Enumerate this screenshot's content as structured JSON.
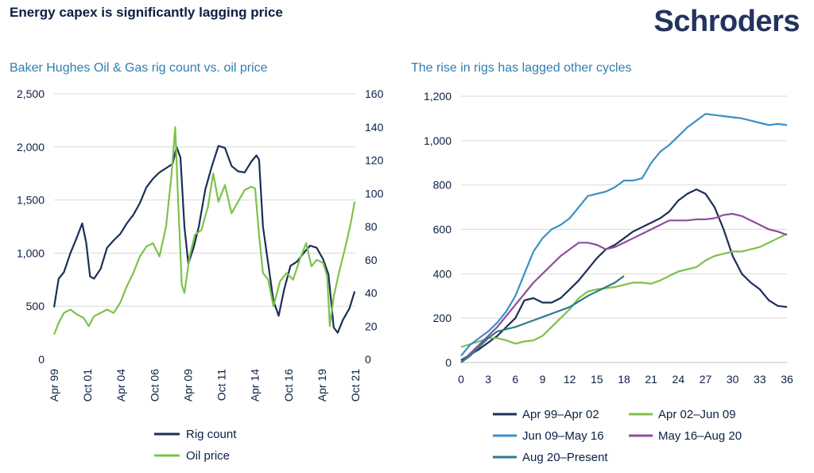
{
  "header": {
    "title": "Energy capex is significantly lagging price",
    "logo": "Schroders"
  },
  "colors": {
    "rig": "#1b2f57",
    "oil": "#7dc24b",
    "s1": "#1b2f57",
    "s2": "#7dc24b",
    "s3": "#3d8fc6",
    "s4": "#8e4f9a",
    "s5": "#2c7a8c",
    "grid": "#d9d9d9"
  },
  "chart_data": [
    {
      "type": "line",
      "title": "Baker Hughes Oil & Gas rig count vs. oil price",
      "x_ticks": [
        "Apr 99",
        "Oct 01",
        "Apr 04",
        "Oct 06",
        "Apr 09",
        "Oct 11",
        "Apr 14",
        "Oct 16",
        "Apr 19",
        "Oct 21"
      ],
      "y_left_ticks": [
        "0",
        "500",
        "1,000",
        "1,500",
        "2,000",
        "2,500"
      ],
      "y_left_lim": [
        0,
        2500
      ],
      "y_right_ticks": [
        "0",
        "20",
        "40",
        "60",
        "80",
        "100",
        "120",
        "140",
        "160"
      ],
      "y_right_lim": [
        0,
        160
      ],
      "x_lim": [
        1999.25,
        2022.25
      ],
      "legend": [
        "Rig count",
        "Oil price"
      ],
      "series": [
        {
          "name": "Rig count",
          "axis": "left",
          "x": [
            1999.25,
            1999.6,
            2000.0,
            2000.5,
            2001.0,
            2001.4,
            2001.7,
            2002.0,
            2002.3,
            2002.8,
            2003.3,
            2003.8,
            2004.3,
            2004.8,
            2005.3,
            2005.8,
            2006.3,
            2006.8,
            2007.3,
            2007.8,
            2008.3,
            2008.6,
            2008.9,
            2009.2,
            2009.5,
            2009.9,
            2010.3,
            2010.8,
            2011.3,
            2011.8,
            2012.3,
            2012.8,
            2013.3,
            2013.8,
            2014.3,
            2014.7,
            2014.9,
            2015.2,
            2015.6,
            2016.0,
            2016.4,
            2016.8,
            2017.3,
            2017.8,
            2018.3,
            2018.8,
            2019.3,
            2019.8,
            2020.2,
            2020.6,
            2020.9,
            2021.3,
            2021.8,
            2022.2
          ],
          "y": [
            490,
            760,
            820,
            1000,
            1150,
            1280,
            1100,
            780,
            760,
            850,
            1050,
            1120,
            1180,
            1280,
            1360,
            1470,
            1620,
            1700,
            1760,
            1800,
            1840,
            2000,
            1900,
            1250,
            900,
            1050,
            1250,
            1600,
            1820,
            2010,
            1990,
            1820,
            1770,
            1760,
            1860,
            1920,
            1880,
            1250,
            900,
            550,
            410,
            650,
            880,
            920,
            1000,
            1070,
            1050,
            940,
            800,
            300,
            250,
            370,
            480,
            640
          ]
        },
        {
          "name": "Oil price",
          "axis": "right",
          "x": [
            1999.25,
            1999.6,
            2000.0,
            2000.5,
            2001.0,
            2001.5,
            2001.9,
            2002.3,
            2002.8,
            2003.3,
            2003.8,
            2004.3,
            2004.8,
            2005.3,
            2005.8,
            2006.3,
            2006.8,
            2007.3,
            2007.8,
            2008.2,
            2008.5,
            2008.7,
            2009.0,
            2009.2,
            2009.6,
            2010.0,
            2010.5,
            2011.0,
            2011.4,
            2011.8,
            2012.3,
            2012.8,
            2013.3,
            2013.8,
            2014.3,
            2014.6,
            2014.9,
            2015.2,
            2015.6,
            2016.0,
            2016.5,
            2017.0,
            2017.5,
            2018.0,
            2018.5,
            2018.9,
            2019.3,
            2019.8,
            2020.1,
            2020.3,
            2020.6,
            2021.0,
            2021.5,
            2021.9,
            2022.2
          ],
          "y": [
            15,
            22,
            28,
            30,
            27,
            25,
            20,
            26,
            28,
            30,
            28,
            34,
            44,
            52,
            62,
            68,
            70,
            62,
            80,
            110,
            140,
            100,
            45,
            40,
            62,
            75,
            78,
            92,
            112,
            95,
            105,
            88,
            95,
            102,
            104,
            103,
            75,
            52,
            48,
            32,
            47,
            52,
            48,
            60,
            70,
            56,
            60,
            58,
            50,
            20,
            38,
            52,
            68,
            82,
            95
          ]
        }
      ]
    },
    {
      "type": "line",
      "title": "The rise in rigs has lagged other cycles",
      "x_ticks": [
        "0",
        "3",
        "6",
        "9",
        "12",
        "15",
        "18",
        "21",
        "24",
        "27",
        "30",
        "33",
        "36"
      ],
      "x_lim": [
        0,
        36
      ],
      "y_ticks": [
        "0",
        "200",
        "400",
        "600",
        "800",
        "1,000",
        "1,200"
      ],
      "y_lim": [
        0,
        1200
      ],
      "series": [
        {
          "name": "Apr 99–Apr 02",
          "x": [
            0,
            2,
            4,
            6,
            7,
            8,
            9,
            10,
            11,
            12,
            13,
            14,
            15,
            16,
            17,
            18,
            19,
            20,
            21,
            22,
            23,
            24,
            25,
            26,
            27,
            28,
            29,
            30,
            31,
            32,
            33,
            34,
            35,
            36
          ],
          "y": [
            10,
            60,
            120,
            200,
            280,
            290,
            270,
            270,
            290,
            330,
            370,
            420,
            470,
            510,
            530,
            560,
            590,
            610,
            630,
            650,
            680,
            730,
            760,
            780,
            760,
            700,
            600,
            480,
            400,
            360,
            330,
            280,
            255,
            250
          ]
        },
        {
          "name": "Apr 02–Jun 09",
          "x": [
            0,
            2,
            3,
            4,
            5,
            6,
            7,
            8,
            9,
            10,
            11,
            12,
            13,
            14,
            15,
            16,
            17,
            18,
            19,
            20,
            21,
            22,
            23,
            24,
            25,
            26,
            27,
            28,
            29,
            30,
            31,
            32,
            33,
            34,
            35,
            36
          ],
          "y": [
            70,
            95,
            110,
            110,
            100,
            85,
            95,
            100,
            120,
            160,
            200,
            240,
            290,
            320,
            330,
            335,
            340,
            350,
            360,
            360,
            355,
            370,
            390,
            410,
            420,
            430,
            460,
            480,
            490,
            500,
            500,
            510,
            520,
            540,
            560,
            580
          ]
        },
        {
          "name": "Jun 09–May 16",
          "x": [
            0,
            1,
            2,
            3,
            4,
            5,
            6,
            7,
            8,
            9,
            10,
            11,
            12,
            13,
            14,
            15,
            16,
            17,
            18,
            19,
            20,
            21,
            22,
            23,
            24,
            25,
            26,
            27,
            28,
            29,
            30,
            31,
            32,
            33,
            34,
            35,
            36
          ],
          "y": [
            30,
            80,
            110,
            140,
            180,
            230,
            300,
            400,
            500,
            560,
            600,
            620,
            650,
            700,
            750,
            760,
            770,
            790,
            820,
            820,
            830,
            900,
            950,
            980,
            1020,
            1060,
            1090,
            1120,
            1115,
            1110,
            1105,
            1100,
            1090,
            1080,
            1070,
            1075,
            1070
          ]
        },
        {
          "name": "May 16–Aug 20",
          "x": [
            0,
            1,
            2,
            3,
            4,
            5,
            6,
            7,
            8,
            9,
            10,
            11,
            12,
            13,
            14,
            15,
            16,
            17,
            18,
            19,
            20,
            21,
            22,
            23,
            24,
            25,
            26,
            27,
            28,
            29,
            30,
            31,
            32,
            33,
            34,
            35,
            36
          ],
          "y": [
            0,
            40,
            80,
            120,
            160,
            210,
            260,
            310,
            360,
            400,
            440,
            480,
            510,
            540,
            540,
            530,
            510,
            520,
            540,
            560,
            580,
            600,
            620,
            640,
            640,
            640,
            645,
            645,
            650,
            665,
            670,
            660,
            640,
            620,
            600,
            590,
            575
          ]
        },
        {
          "name": "Aug 20–Present",
          "x": [
            0,
            1,
            2,
            3,
            4,
            5,
            6,
            7,
            8,
            9,
            10,
            11,
            12,
            13,
            14,
            15,
            16,
            17,
            18
          ],
          "y": [
            0,
            30,
            70,
            110,
            140,
            150,
            160,
            175,
            190,
            205,
            220,
            235,
            250,
            275,
            300,
            320,
            340,
            360,
            390
          ]
        }
      ]
    }
  ]
}
